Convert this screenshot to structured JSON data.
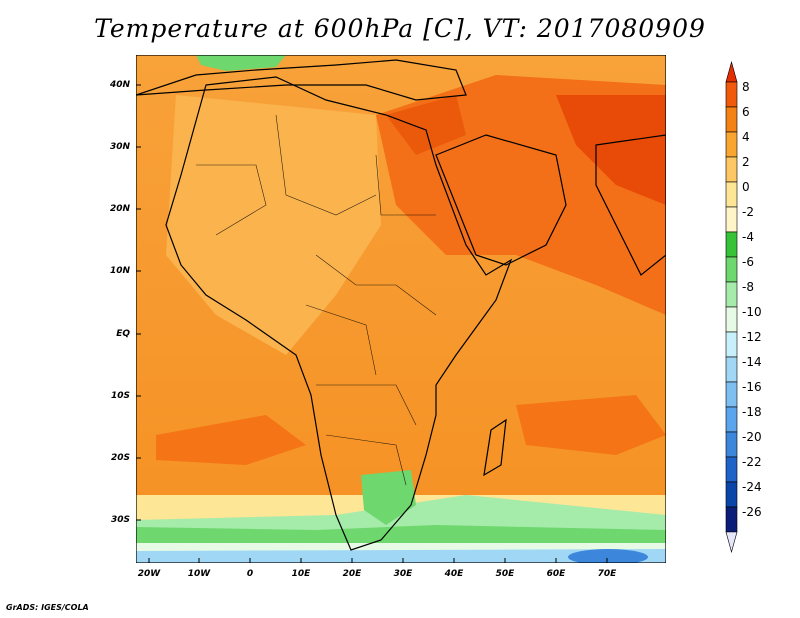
{
  "title": "Temperature at 600hPa [C], VT: 2017080909",
  "credit": "GrADS: IGES/COLA",
  "map": {
    "lat_labels": [
      "40N",
      "30N",
      "20N",
      "10N",
      "EQ",
      "10S",
      "20S",
      "30S"
    ],
    "lon_labels": [
      "20W",
      "10W",
      "0",
      "10E",
      "20E",
      "30E",
      "40E",
      "50E",
      "60E",
      "70E"
    ]
  },
  "colorbar": {
    "labels": [
      "8",
      "6",
      "4",
      "2",
      "0",
      "-2",
      "-4",
      "-6",
      "-8",
      "-10",
      "-12",
      "-14",
      "-16",
      "-18",
      "-20",
      "-22",
      "-24",
      "-26"
    ],
    "colors": [
      "#e62d00",
      "#f05a0a",
      "#f58214",
      "#faa532",
      "#fdc864",
      "#fde696",
      "#fff5c8",
      "#37c337",
      "#6ed76e",
      "#a5ebaa",
      "#e6fae6",
      "#c8f0fa",
      "#9fd7f5",
      "#7dbff0",
      "#5aa5eb",
      "#3c87dc",
      "#1e64c8",
      "#0a46aa",
      "#0a1e78",
      "#e6e6fa"
    ]
  }
}
